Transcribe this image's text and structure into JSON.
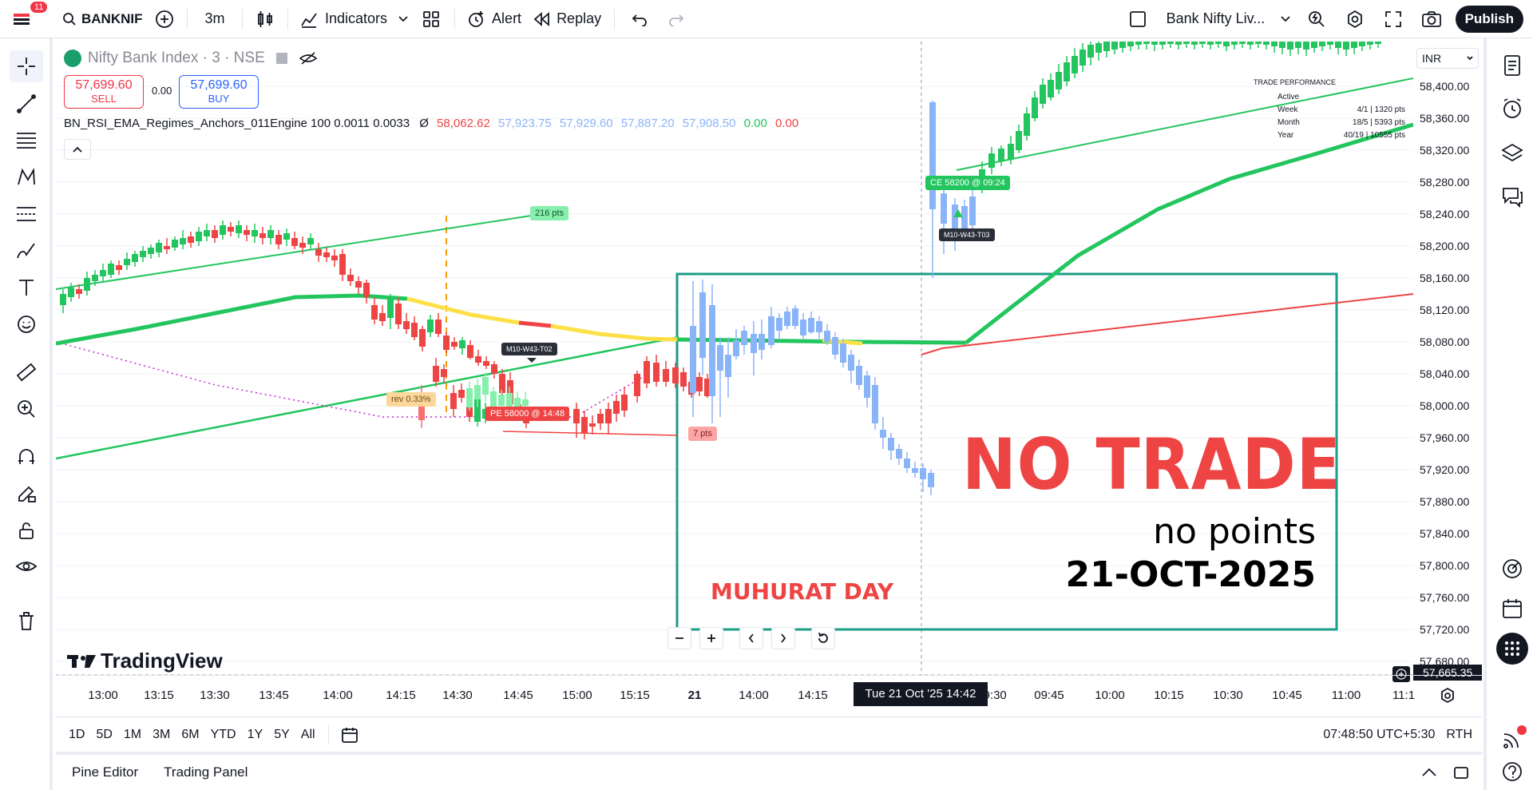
{
  "topbar": {
    "notifications": "11",
    "symbol": "BANKNIF",
    "interval": "3m",
    "indicators_label": "Indicators",
    "alert_label": "Alert",
    "replay_label": "Replay",
    "layout_name": "Bank Nifty Liv...",
    "publish_label": "Publish"
  },
  "legend": {
    "title": "Nifty Bank Index · 3 · NSE",
    "sell_price": "57,699.60",
    "sell_label": "SELL",
    "spread": "0.00",
    "buy_price": "57,699.60",
    "buy_label": "BUY",
    "indicator_name": "BN_RSI_EMA_Regimes_Anchors_011Engine 100 0.0011 0.0033",
    "indicator_symbol": "Ø",
    "v1": "58,062.62",
    "v2": "57,923.75",
    "v3": "57,929.60",
    "v4": "57,887.20",
    "v5": "57,908.50",
    "v6": "0.00",
    "v7": "0.00"
  },
  "colors": {
    "up": "#22c55e",
    "down": "#ef4444",
    "accent_blue": "#2962ff",
    "ema_green": "#22c55e",
    "highlight_yellow": "#fde047",
    "box_teal": "#1a9e87",
    "blue_candle": "#8ab4f8"
  },
  "performance": {
    "title": "TRADE PERFORMANCE",
    "rows": [
      {
        "label": "Active",
        "value": ""
      },
      {
        "label": "Week",
        "value": "4/1 | 1320 pts"
      },
      {
        "label": "Month",
        "value": "18/5 | 5393 pts"
      },
      {
        "label": "Year",
        "value": "40/19 | 10555 pts"
      }
    ]
  },
  "currency": "INR",
  "price_scale": [
    "58,400.00",
    "58,360.00",
    "58,320.00",
    "58,280.00",
    "58,240.00",
    "58,200.00",
    "58,160.00",
    "58,120.00",
    "58,080.00",
    "58,040.00",
    "58,000.00",
    "57,960.00",
    "57,920.00",
    "57,880.00",
    "57,840.00",
    "57,800.00",
    "57,760.00",
    "57,720.00",
    "57,680.00"
  ],
  "last_price": "57,665.35",
  "time_axis": [
    "13:00",
    "13:15",
    "13:30",
    "13:45",
    "14:00",
    "14:15",
    "14:30",
    "14:45",
    "15:00",
    "15:15",
    "21",
    "14:00",
    "14:15",
    "09:30",
    "09:45",
    "10:00",
    "10:15",
    "10:30",
    "10:45",
    "11:00",
    "11:1"
  ],
  "crosshair_time": "Tue 21 Oct '25   14:42",
  "annotations": {
    "pts_216": "216 pts",
    "rev": "rev 0.33%",
    "m10_t02": "M10-W43-T02",
    "pe": "PE 58000 @ 14:48",
    "pts_7": "7 pts",
    "ce": "CE 58200 @ 09:24",
    "m10_t03": "M10-W43-T03",
    "no_trade": "NO TRADE",
    "no_points": "no points",
    "date": "21-OCT-2025",
    "muhurat": "MUHURAT DAY"
  },
  "watermark": "TradingView",
  "timeframes": [
    "1D",
    "5D",
    "1M",
    "3M",
    "6M",
    "YTD",
    "1Y",
    "5Y",
    "All"
  ],
  "clock": "07:48:50 UTC+5:30",
  "session": "RTH",
  "bottom_tabs": [
    "Pine Editor",
    "Trading Panel"
  ]
}
